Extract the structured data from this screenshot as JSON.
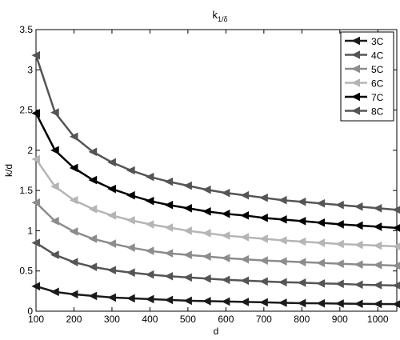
{
  "chart_data": {
    "type": "line",
    "title_main": "k",
    "title_sub": "1/δ",
    "xlabel": "d",
    "ylabel": "k/d",
    "xlim": [
      100,
      1050
    ],
    "ylim": [
      0,
      3.5
    ],
    "x_ticks": [
      100,
      200,
      300,
      400,
      500,
      600,
      700,
      800,
      900,
      1000
    ],
    "y_ticks": [
      0,
      0.5,
      1,
      1.5,
      2,
      2.5,
      3,
      3.5
    ],
    "y_tick_labels": [
      "0",
      "0.5",
      "1",
      "1.5",
      "2",
      "2.5",
      "3",
      "3.5"
    ],
    "legend_position": "top-right",
    "marker": "left-triangle",
    "x": [
      100,
      150,
      200,
      250,
      300,
      350,
      400,
      450,
      500,
      550,
      600,
      650,
      700,
      750,
      800,
      850,
      900,
      950,
      1000,
      1050
    ],
    "series": [
      {
        "name": "3C",
        "color": "#1a1a1a",
        "values": [
          0.31,
          0.24,
          0.21,
          0.19,
          0.17,
          0.16,
          0.15,
          0.14,
          0.13,
          0.125,
          0.12,
          0.115,
          0.11,
          0.105,
          0.1,
          0.098,
          0.095,
          0.092,
          0.09,
          0.088
        ]
      },
      {
        "name": "4C",
        "color": "#555555",
        "values": [
          0.85,
          0.7,
          0.61,
          0.55,
          0.51,
          0.48,
          0.455,
          0.435,
          0.42,
          0.405,
          0.39,
          0.38,
          0.37,
          0.36,
          0.355,
          0.345,
          0.34,
          0.33,
          0.325,
          0.32
        ]
      },
      {
        "name": "5C",
        "color": "#8c8c8c",
        "values": [
          1.35,
          1.12,
          0.99,
          0.9,
          0.84,
          0.79,
          0.75,
          0.72,
          0.7,
          0.68,
          0.66,
          0.645,
          0.63,
          0.62,
          0.61,
          0.6,
          0.59,
          0.58,
          0.575,
          0.565
        ]
      },
      {
        "name": "6C",
        "color": "#b5b5b5",
        "values": [
          1.89,
          1.55,
          1.38,
          1.27,
          1.19,
          1.13,
          1.08,
          1.04,
          1.0,
          0.97,
          0.94,
          0.92,
          0.9,
          0.88,
          0.865,
          0.85,
          0.835,
          0.825,
          0.815,
          0.805
        ]
      },
      {
        "name": "7C",
        "color": "#000000",
        "values": [
          2.46,
          2.0,
          1.78,
          1.63,
          1.52,
          1.44,
          1.37,
          1.32,
          1.28,
          1.24,
          1.21,
          1.19,
          1.16,
          1.14,
          1.12,
          1.1,
          1.08,
          1.065,
          1.05,
          1.035
        ]
      },
      {
        "name": "8C",
        "color": "#555555",
        "values": [
          3.18,
          2.47,
          2.17,
          1.98,
          1.85,
          1.75,
          1.67,
          1.61,
          1.56,
          1.51,
          1.47,
          1.44,
          1.41,
          1.38,
          1.36,
          1.34,
          1.32,
          1.3,
          1.28,
          1.26
        ]
      }
    ]
  }
}
